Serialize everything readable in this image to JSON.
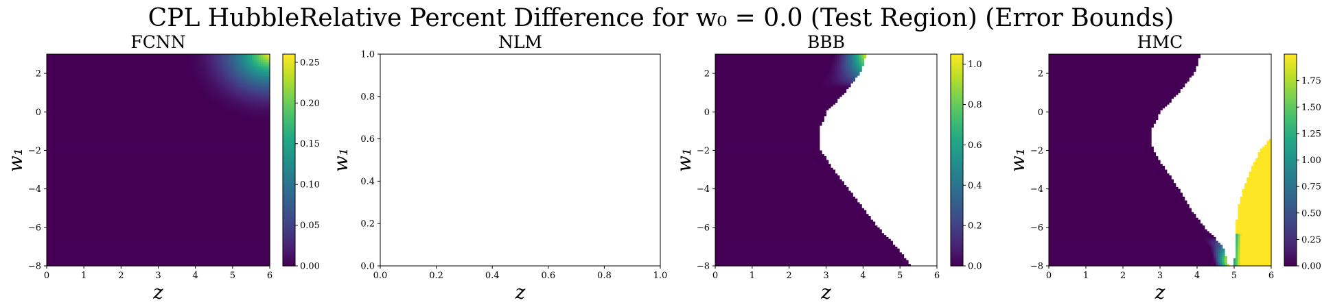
{
  "figure": {
    "title": "CPL HubbleRelative Percent Difference for w₀ = 0.0 (Test Region) (Error Bounds)"
  },
  "colormap": [
    "#440154",
    "#482475",
    "#414487",
    "#355f8d",
    "#2a788e",
    "#21918c",
    "#22a884",
    "#44bf70",
    "#7ad151",
    "#bddf26",
    "#fde725"
  ],
  "chart_data": [
    {
      "type": "heatmap",
      "title": "FCNN",
      "xlabel": "z",
      "ylabel": "w₁",
      "xlim": [
        0,
        6
      ],
      "ylim": [
        -8,
        3
      ],
      "x_ticks": [
        "0",
        "1",
        "2",
        "3",
        "4",
        "5",
        "6"
      ],
      "y_ticks": [
        "2",
        "0",
        "−2",
        "−4",
        "−6",
        "−8"
      ],
      "y_tick_values": [
        2,
        0,
        -2,
        -4,
        -6,
        -8
      ],
      "colorbar": {
        "vmin": 0.0,
        "vmax": 0.26,
        "ticks": [
          "0.00",
          "0.05",
          "0.10",
          "0.15",
          "0.20",
          "0.25"
        ],
        "tick_values": [
          0.0,
          0.05,
          0.1,
          0.15,
          0.2,
          0.25
        ]
      },
      "field": "fcnn",
      "x_range": [
        0,
        6
      ],
      "y_range": [
        -8,
        3
      ]
    },
    {
      "type": "heatmap",
      "title": "NLM",
      "xlabel": "z",
      "ylabel": "w₁",
      "xlim": [
        0.0,
        1.0
      ],
      "ylim": [
        0.0,
        1.0
      ],
      "x_ticks": [
        "0.0",
        "0.2",
        "0.4",
        "0.6",
        "0.8",
        "1.0"
      ],
      "y_ticks": [
        "1.0",
        "0.8",
        "0.6",
        "0.4",
        "0.2",
        "0.0"
      ],
      "y_tick_values": [
        1.0,
        0.8,
        0.6,
        0.4,
        0.2,
        0.0
      ],
      "field": "empty",
      "x_range": [
        0,
        1
      ],
      "y_range": [
        0,
        1
      ]
    },
    {
      "type": "heatmap",
      "title": "BBB",
      "xlabel": "z",
      "ylabel": "w₁",
      "xlim": [
        0,
        6
      ],
      "ylim": [
        -8,
        3
      ],
      "x_ticks": [
        "0",
        "1",
        "2",
        "3",
        "4",
        "5",
        "6"
      ],
      "y_ticks": [
        "2",
        "0",
        "−2",
        "−4",
        "−6",
        "−8"
      ],
      "y_tick_values": [
        2,
        0,
        -2,
        -4,
        -6,
        -8
      ],
      "colorbar": {
        "vmin": 0.0,
        "vmax": 1.05,
        "ticks": [
          "0.0",
          "0.2",
          "0.4",
          "0.6",
          "0.8",
          "1.0"
        ],
        "tick_values": [
          0.0,
          0.2,
          0.4,
          0.6,
          0.8,
          1.0
        ]
      },
      "field": "bbb",
      "x_range": [
        0,
        6
      ],
      "y_range": [
        -8,
        3
      ],
      "boundary": [
        [
          -8,
          5.3
        ],
        [
          -7,
          4.9
        ],
        [
          -6,
          4.4
        ],
        [
          -5,
          4.0
        ],
        [
          -4,
          3.6
        ],
        [
          -3,
          3.2
        ],
        [
          -2,
          2.85
        ],
        [
          -1,
          2.8
        ],
        [
          0,
          3.0
        ],
        [
          1,
          3.5
        ],
        [
          2,
          3.9
        ],
        [
          3,
          4.1
        ]
      ]
    },
    {
      "type": "heatmap",
      "title": "HMC",
      "xlabel": "z",
      "ylabel": "w₁",
      "xlim": [
        0,
        6
      ],
      "ylim": [
        -8,
        3
      ],
      "x_ticks": [
        "0",
        "1",
        "2",
        "3",
        "4",
        "5",
        "6"
      ],
      "y_ticks": [
        "2",
        "0",
        "−2",
        "−4",
        "−6",
        "−8"
      ],
      "y_tick_values": [
        2,
        0,
        -2,
        -4,
        -6,
        -8
      ],
      "colorbar": {
        "vmin": 0.0,
        "vmax": 2.0,
        "ticks": [
          "0.00",
          "0.25",
          "0.50",
          "0.75",
          "1.00",
          "1.25",
          "1.50",
          "1.75"
        ],
        "tick_values": [
          0.0,
          0.25,
          0.5,
          0.75,
          1.0,
          1.25,
          1.5,
          1.75
        ]
      },
      "field": "hmc",
      "x_range": [
        0,
        6
      ],
      "y_range": [
        -8,
        3
      ],
      "boundary": [
        [
          -8,
          4.85
        ],
        [
          -7,
          4.7
        ],
        [
          -6,
          4.2
        ],
        [
          -5,
          3.8
        ],
        [
          -4,
          3.5
        ],
        [
          -3,
          3.15
        ],
        [
          -2,
          2.8
        ],
        [
          -1,
          2.75
        ],
        [
          0,
          3.0
        ],
        [
          1,
          3.5
        ],
        [
          2,
          3.9
        ],
        [
          3,
          4.1
        ]
      ],
      "right_region": [
        [
          -8,
          5.0
        ],
        [
          -6,
          5.05
        ],
        [
          -5,
          5.1
        ],
        [
          -4,
          5.25
        ],
        [
          -3,
          5.45
        ],
        [
          -2,
          5.7
        ],
        [
          -1.3,
          6.0
        ]
      ]
    }
  ]
}
